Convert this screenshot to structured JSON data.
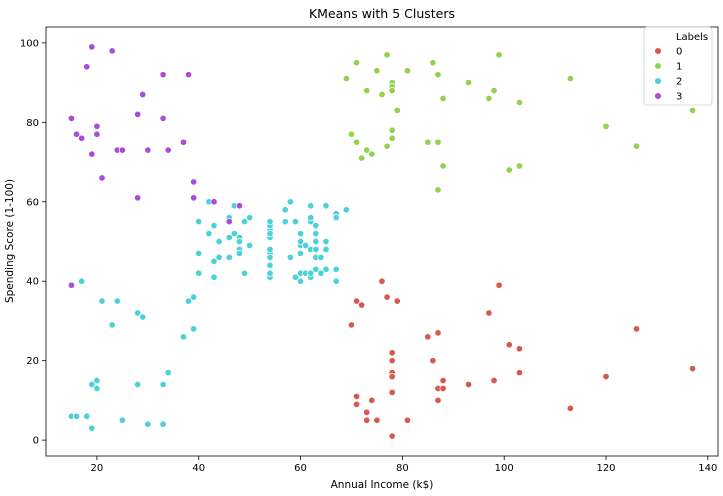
{
  "chart_data": {
    "type": "scatter",
    "title": "KMeans with 5 Clusters",
    "xlabel": "Annual Income (k$)",
    "ylabel": "Spending Score (1-100)",
    "xlim": [
      10,
      142
    ],
    "ylim": [
      -4,
      104
    ],
    "xticks": [
      20,
      40,
      60,
      80,
      100,
      120,
      140
    ],
    "yticks": [
      0,
      20,
      40,
      60,
      80,
      100
    ],
    "grid": false,
    "legend": {
      "title": "Labels",
      "position": "top-right"
    },
    "series": [
      {
        "name": "0",
        "color": "#d9584d",
        "points": [
          [
            70,
            29
          ],
          [
            71,
            35
          ],
          [
            71,
            11
          ],
          [
            71,
            9
          ],
          [
            72,
            34
          ],
          [
            73,
            5
          ],
          [
            73,
            7
          ],
          [
            74,
            10
          ],
          [
            75,
            5
          ],
          [
            76,
            40
          ],
          [
            77,
            36
          ],
          [
            78,
            22
          ],
          [
            78,
            20
          ],
          [
            78,
            17
          ],
          [
            78,
            16
          ],
          [
            78,
            1
          ],
          [
            78,
            12
          ],
          [
            79,
            35
          ],
          [
            81,
            5
          ],
          [
            85,
            26
          ],
          [
            86,
            20
          ],
          [
            87,
            27
          ],
          [
            87,
            13
          ],
          [
            87,
            10
          ],
          [
            88,
            13
          ],
          [
            88,
            15
          ],
          [
            93,
            14
          ],
          [
            97,
            32
          ],
          [
            98,
            15
          ],
          [
            99,
            39
          ],
          [
            101,
            24
          ],
          [
            103,
            17
          ],
          [
            103,
            23
          ],
          [
            113,
            8
          ],
          [
            120,
            16
          ],
          [
            126,
            28
          ],
          [
            137,
            18
          ]
        ]
      },
      {
        "name": "1",
        "color": "#93d24e",
        "points": [
          [
            69,
            91
          ],
          [
            70,
            77
          ],
          [
            71,
            95
          ],
          [
            71,
            75
          ],
          [
            72,
            71
          ],
          [
            73,
            88
          ],
          [
            73,
            73
          ],
          [
            74,
            72
          ],
          [
            75,
            93
          ],
          [
            76,
            87
          ],
          [
            77,
            97
          ],
          [
            77,
            74
          ],
          [
            78,
            90
          ],
          [
            78,
            89
          ],
          [
            78,
            88
          ],
          [
            78,
            78
          ],
          [
            78,
            76
          ],
          [
            79,
            83
          ],
          [
            81,
            93
          ],
          [
            85,
            75
          ],
          [
            86,
            95
          ],
          [
            87,
            75
          ],
          [
            87,
            92
          ],
          [
            87,
            63
          ],
          [
            88,
            86
          ],
          [
            88,
            69
          ],
          [
            93,
            90
          ],
          [
            97,
            86
          ],
          [
            98,
            88
          ],
          [
            99,
            97
          ],
          [
            101,
            68
          ],
          [
            103,
            85
          ],
          [
            103,
            69
          ],
          [
            113,
            91
          ],
          [
            120,
            79
          ],
          [
            126,
            74
          ],
          [
            137,
            83
          ]
        ]
      },
      {
        "name": "2",
        "color": "#4dd1d9",
        "points": [
          [
            15,
            6
          ],
          [
            16,
            6
          ],
          [
            17,
            40
          ],
          [
            18,
            6
          ],
          [
            19,
            3
          ],
          [
            19,
            14
          ],
          [
            20,
            15
          ],
          [
            20,
            13
          ],
          [
            21,
            35
          ],
          [
            23,
            29
          ],
          [
            24,
            35
          ],
          [
            25,
            5
          ],
          [
            28,
            14
          ],
          [
            28,
            32
          ],
          [
            29,
            31
          ],
          [
            30,
            4
          ],
          [
            33,
            4
          ],
          [
            33,
            14
          ],
          [
            34,
            17
          ],
          [
            37,
            26
          ],
          [
            38,
            35
          ],
          [
            39,
            36
          ],
          [
            39,
            28
          ],
          [
            40,
            55
          ],
          [
            40,
            47
          ],
          [
            40,
            42
          ],
          [
            42,
            52
          ],
          [
            42,
            60
          ],
          [
            43,
            54
          ],
          [
            43,
            45
          ],
          [
            43,
            41
          ],
          [
            44,
            46
          ],
          [
            44,
            50
          ],
          [
            46,
            51
          ],
          [
            46,
            46
          ],
          [
            46,
            56
          ],
          [
            47,
            52
          ],
          [
            47,
            59
          ],
          [
            48,
            51
          ],
          [
            48,
            50
          ],
          [
            48,
            48
          ],
          [
            48,
            47
          ],
          [
            49,
            55
          ],
          [
            49,
            42
          ],
          [
            50,
            49
          ],
          [
            50,
            56
          ],
          [
            54,
            47
          ],
          [
            54,
            53
          ],
          [
            54,
            41
          ],
          [
            54,
            42
          ],
          [
            54,
            44
          ],
          [
            54,
            46
          ],
          [
            54,
            48
          ],
          [
            54,
            51
          ],
          [
            54,
            52
          ],
          [
            54,
            54
          ],
          [
            54,
            55
          ],
          [
            57,
            58
          ],
          [
            57,
            55
          ],
          [
            58,
            60
          ],
          [
            58,
            46
          ],
          [
            59,
            55
          ],
          [
            59,
            41
          ],
          [
            60,
            49
          ],
          [
            60,
            40
          ],
          [
            60,
            42
          ],
          [
            60,
            52
          ],
          [
            60,
            47
          ],
          [
            60,
            50
          ],
          [
            61,
            42
          ],
          [
            61,
            49
          ],
          [
            62,
            41
          ],
          [
            62,
            48
          ],
          [
            62,
            59
          ],
          [
            62,
            55
          ],
          [
            62,
            56
          ],
          [
            62,
            42
          ],
          [
            63,
            50
          ],
          [
            63,
            46
          ],
          [
            63,
            43
          ],
          [
            63,
            48
          ],
          [
            63,
            52
          ],
          [
            63,
            54
          ],
          [
            64,
            42
          ],
          [
            64,
            46
          ],
          [
            65,
            48
          ],
          [
            65,
            50
          ],
          [
            65,
            43
          ],
          [
            65,
            59
          ],
          [
            67,
            43
          ],
          [
            67,
            57
          ],
          [
            67,
            56
          ],
          [
            67,
            40
          ],
          [
            69,
            58
          ]
        ]
      },
      {
        "name": "3",
        "color": "#a64dd9",
        "points": [
          [
            15,
            39
          ],
          [
            15,
            81
          ],
          [
            16,
            77
          ],
          [
            17,
            76
          ],
          [
            18,
            94
          ],
          [
            19,
            72
          ],
          [
            19,
            99
          ],
          [
            20,
            77
          ],
          [
            20,
            79
          ],
          [
            21,
            66
          ],
          [
            23,
            98
          ],
          [
            24,
            73
          ],
          [
            25,
            73
          ],
          [
            28,
            82
          ],
          [
            28,
            61
          ],
          [
            29,
            87
          ],
          [
            30,
            73
          ],
          [
            33,
            92
          ],
          [
            33,
            81
          ],
          [
            34,
            73
          ],
          [
            37,
            75
          ],
          [
            38,
            92
          ],
          [
            39,
            65
          ],
          [
            39,
            61
          ],
          [
            43,
            60
          ],
          [
            46,
            55
          ],
          [
            48,
            59
          ]
        ]
      }
    ]
  }
}
